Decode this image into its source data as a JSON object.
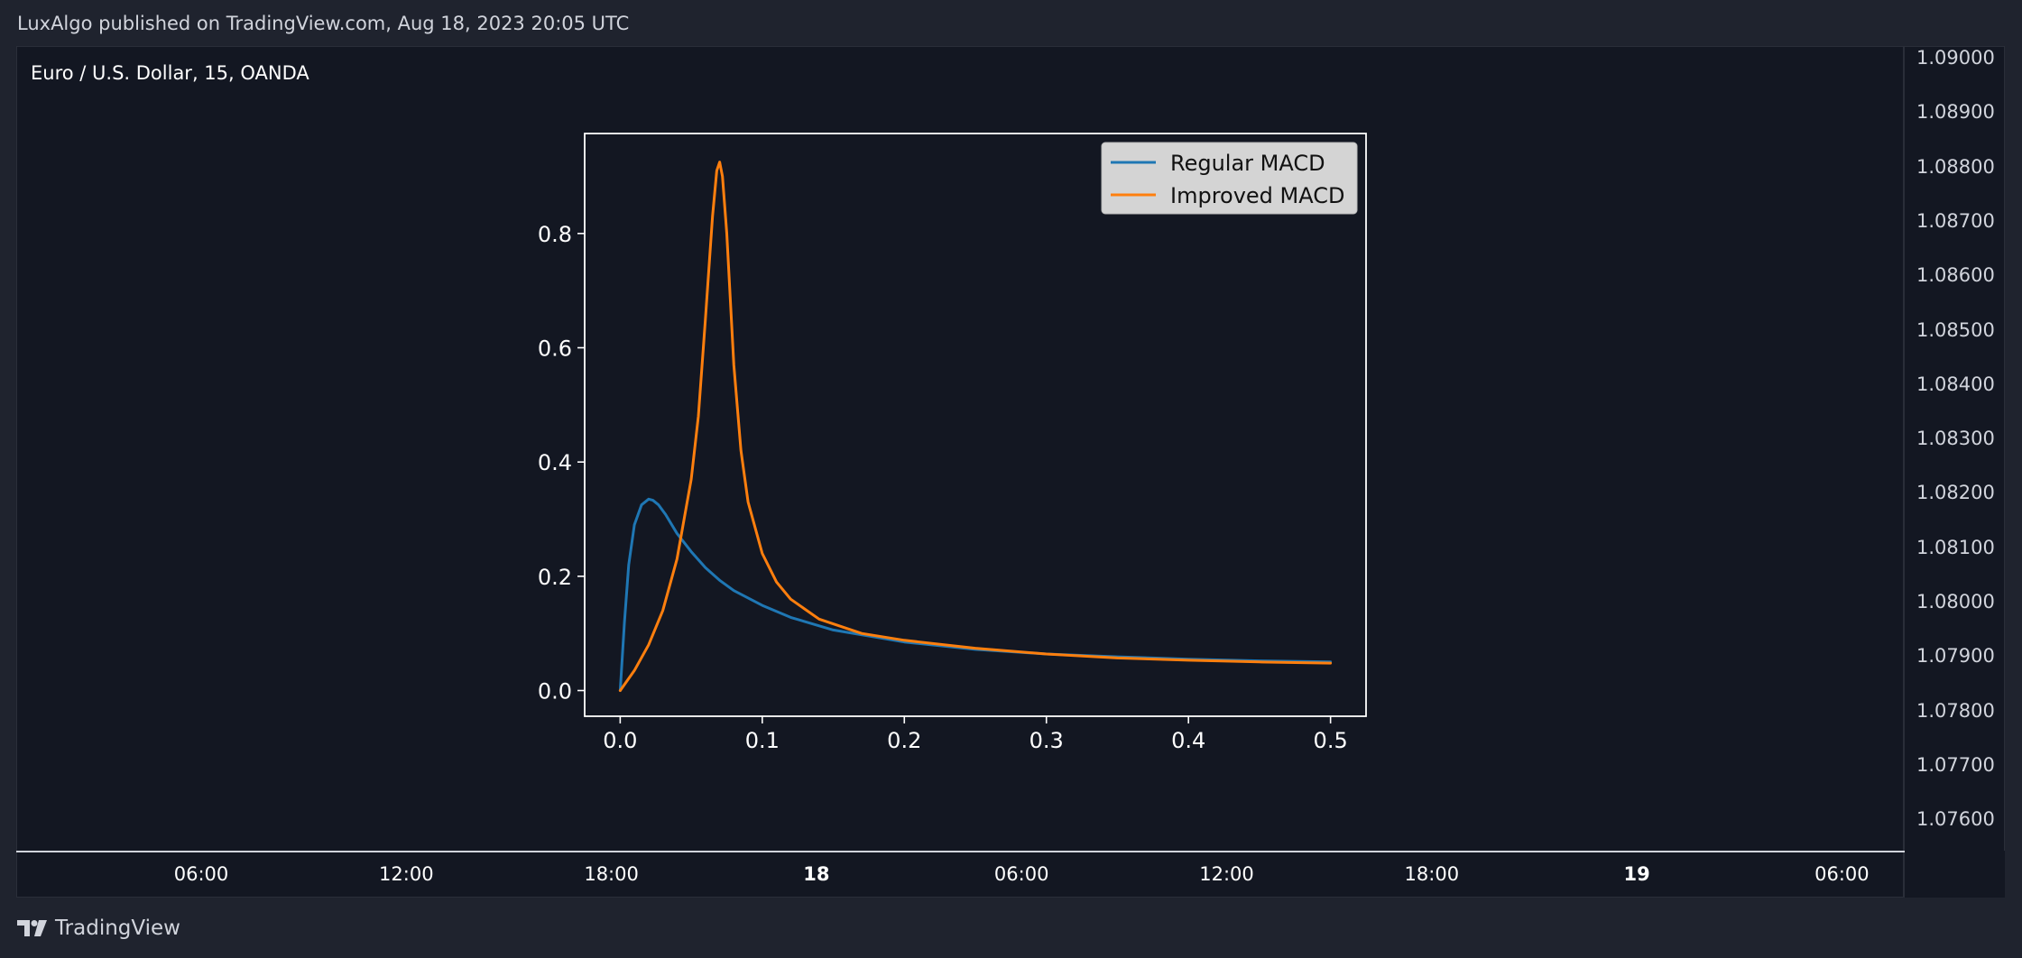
{
  "header": {
    "published_text": "LuxAlgo published on TradingView.com, Aug 18, 2023 20:05 UTC"
  },
  "chart": {
    "symbol_title": "Euro / U.S. Dollar, 15, OANDA"
  },
  "price_axis": {
    "ticks": [
      "1.09000",
      "1.08900",
      "1.08800",
      "1.08700",
      "1.08600",
      "1.08500",
      "1.08400",
      "1.08300",
      "1.08200",
      "1.08100",
      "1.08000",
      "1.07900",
      "1.07800",
      "1.07700",
      "1.07600"
    ]
  },
  "time_axis": {
    "ticks": [
      {
        "label": "06:00",
        "bold": false
      },
      {
        "label": "12:00",
        "bold": false
      },
      {
        "label": "18:00",
        "bold": false
      },
      {
        "label": "18",
        "bold": true
      },
      {
        "label": "06:00",
        "bold": false
      },
      {
        "label": "12:00",
        "bold": false
      },
      {
        "label": "18:00",
        "bold": false
      },
      {
        "label": "19",
        "bold": true
      },
      {
        "label": "06:00",
        "bold": false
      }
    ]
  },
  "footer": {
    "brand": "TradingView"
  },
  "chart_data": {
    "type": "line",
    "title": "",
    "xlabel": "",
    "ylabel": "",
    "xlim": [
      -0.025,
      0.525
    ],
    "ylim": [
      -0.045,
      0.975
    ],
    "xticks": [
      "0.0",
      "0.1",
      "0.2",
      "0.3",
      "0.4",
      "0.5"
    ],
    "yticks": [
      "0.0",
      "0.2",
      "0.4",
      "0.6",
      "0.8"
    ],
    "legend": "top-right",
    "grid": false,
    "series": [
      {
        "name": "Regular MACD",
        "color": "#1f77b4",
        "x": [
          0.0,
          0.003,
          0.006,
          0.01,
          0.015,
          0.02,
          0.023,
          0.027,
          0.032,
          0.04,
          0.05,
          0.06,
          0.07,
          0.08,
          0.1,
          0.12,
          0.15,
          0.2,
          0.25,
          0.3,
          0.35,
          0.4,
          0.45,
          0.5
        ],
        "y": [
          0.0,
          0.12,
          0.22,
          0.29,
          0.325,
          0.335,
          0.333,
          0.325,
          0.308,
          0.275,
          0.243,
          0.215,
          0.193,
          0.175,
          0.149,
          0.128,
          0.106,
          0.085,
          0.072,
          0.064,
          0.059,
          0.055,
          0.052,
          0.05
        ]
      },
      {
        "name": "Improved MACD",
        "color": "#ff7f0e",
        "x": [
          0.0,
          0.01,
          0.02,
          0.03,
          0.04,
          0.05,
          0.055,
          0.06,
          0.065,
          0.068,
          0.07,
          0.072,
          0.075,
          0.08,
          0.085,
          0.09,
          0.1,
          0.11,
          0.12,
          0.14,
          0.17,
          0.2,
          0.25,
          0.3,
          0.35,
          0.4,
          0.45,
          0.5
        ],
        "y": [
          0.0,
          0.035,
          0.08,
          0.14,
          0.23,
          0.37,
          0.48,
          0.65,
          0.83,
          0.91,
          0.925,
          0.9,
          0.8,
          0.57,
          0.42,
          0.33,
          0.24,
          0.19,
          0.16,
          0.125,
          0.1,
          0.088,
          0.074,
          0.064,
          0.057,
          0.053,
          0.05,
          0.048
        ]
      }
    ]
  }
}
